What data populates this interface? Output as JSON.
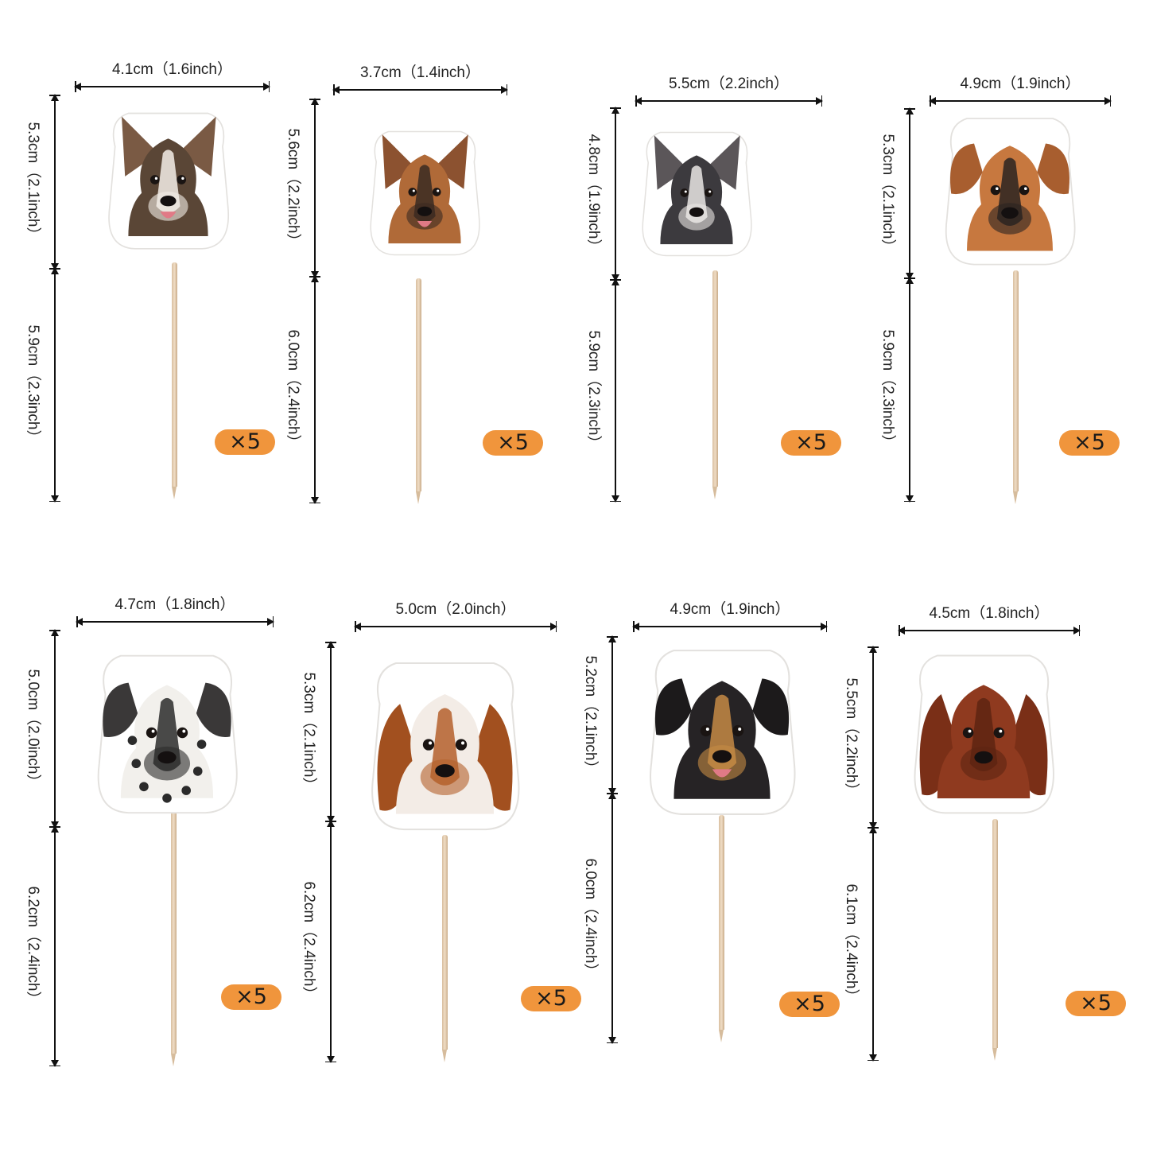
{
  "toppers": [
    {
      "breed_icon": "corgi-head-icon",
      "width_label": "4.1cm（1.6inch）",
      "head_height_label": "5.3cm（2.1inch）",
      "stick_height_label": "5.9cm（2.3inch）",
      "quantity_label": "×5",
      "colors": {
        "main": "#5a4636",
        "accent": "#f4efe8",
        "ear": "#7a5a44"
      }
    },
    {
      "breed_icon": "german-shepherd-head-icon",
      "width_label": "3.7cm（1.4inch）",
      "head_height_label": "5.6cm（2.2inch）",
      "stick_height_label": "6.0cm（2.4inch）",
      "quantity_label": "×5",
      "colors": {
        "main": "#b06a38",
        "accent": "#3a2a22",
        "ear": "#8c5230"
      }
    },
    {
      "breed_icon": "chihuahua-head-icon",
      "width_label": "5.5cm（2.2inch）",
      "head_height_label": "4.8cm（1.9inch）",
      "stick_height_label": "5.9cm（2.3inch）",
      "quantity_label": "×5",
      "colors": {
        "main": "#3c3a3e",
        "accent": "#e9e6e4",
        "ear": "#5b5659"
      }
    },
    {
      "breed_icon": "boxer-head-icon",
      "width_label": "4.9cm（1.9inch）",
      "head_height_label": "5.3cm（2.1inch）",
      "stick_height_label": "5.9cm（2.3inch）",
      "quantity_label": "×5",
      "colors": {
        "main": "#c7783f",
        "accent": "#2a2321",
        "ear": "#a85e2f"
      }
    },
    {
      "breed_icon": "dalmatian-head-icon",
      "width_label": "4.7cm（1.8inch）",
      "head_height_label": "5.0cm（2.0inch）",
      "stick_height_label": "6.2cm（2.4inch）",
      "quantity_label": "×5",
      "colors": {
        "main": "#f2f0ec",
        "accent": "#2b2b2b",
        "ear": "#3a3838"
      }
    },
    {
      "breed_icon": "cavalier-spaniel-head-icon",
      "width_label": "5.0cm（2.0inch）",
      "head_height_label": "5.3cm（2.1inch）",
      "stick_height_label": "6.2cm（2.4inch）",
      "quantity_label": "×5",
      "colors": {
        "main": "#f3ece6",
        "accent": "#b4602c",
        "ear": "#a2501f"
      }
    },
    {
      "breed_icon": "rottweiler-head-icon",
      "width_label": "4.9cm（1.9inch）",
      "head_height_label": "5.2cm（2.1inch）",
      "stick_height_label": "6.0cm（2.4inch）",
      "quantity_label": "×5",
      "colors": {
        "main": "#262325",
        "accent": "#c58a45",
        "ear": "#1c1a1b"
      }
    },
    {
      "breed_icon": "irish-setter-head-icon",
      "width_label": "4.5cm（1.8inch）",
      "head_height_label": "5.5cm（2.2inch）",
      "stick_height_label": "6.1cm（2.4inch）",
      "quantity_label": "×5",
      "colors": {
        "main": "#8f3a1f",
        "accent": "#5e2412",
        "ear": "#7a2f17"
      }
    }
  ],
  "badge_color": "#f0953c"
}
